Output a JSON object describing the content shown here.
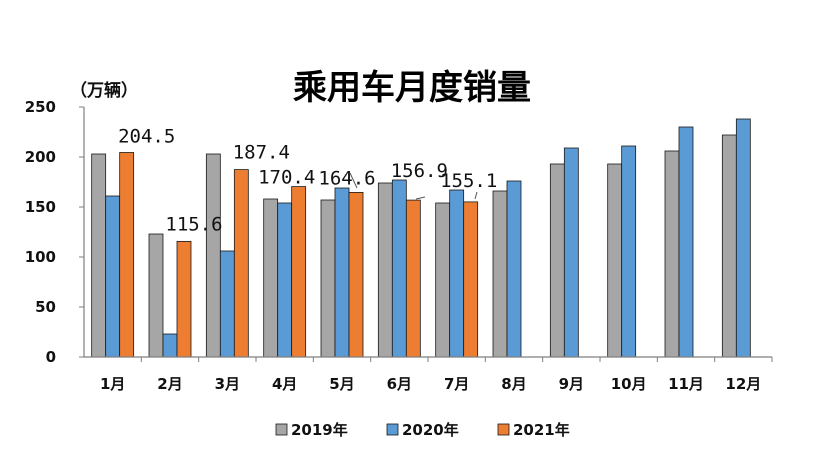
{
  "chart_data": {
    "type": "bar",
    "title": "乘用车月度销量",
    "unit_label": "（万辆）",
    "categories": [
      "1月",
      "2月",
      "3月",
      "4月",
      "5月",
      "6月",
      "7月",
      "8月",
      "9月",
      "10月",
      "11月",
      "12月"
    ],
    "ylim": [
      0,
      250
    ],
    "y_ticks": [
      "0",
      "50",
      "100",
      "150",
      "200",
      "250"
    ],
    "grid": false,
    "legend_position": "bottom",
    "series": [
      {
        "name": "2019年",
        "color": "#a6a6a6",
        "values": [
          203,
          123,
          203,
          158,
          157,
          174,
          154,
          166,
          193,
          193,
          206,
          222
        ]
      },
      {
        "name": "2020年",
        "color": "#5b9bd5",
        "values": [
          161,
          23,
          106,
          154,
          169,
          177,
          167,
          176,
          209,
          211,
          230,
          238
        ]
      },
      {
        "name": "2021年",
        "color": "#ed7d31",
        "values": [
          204.5,
          115.6,
          187.4,
          170.4,
          164.6,
          156.9,
          155.1,
          null,
          null,
          null,
          null,
          null
        ]
      }
    ],
    "data_labels": [
      "204.5",
      "115.6",
      "187.4",
      "170.4",
      "164.6",
      "156.9",
      "155.1"
    ]
  }
}
